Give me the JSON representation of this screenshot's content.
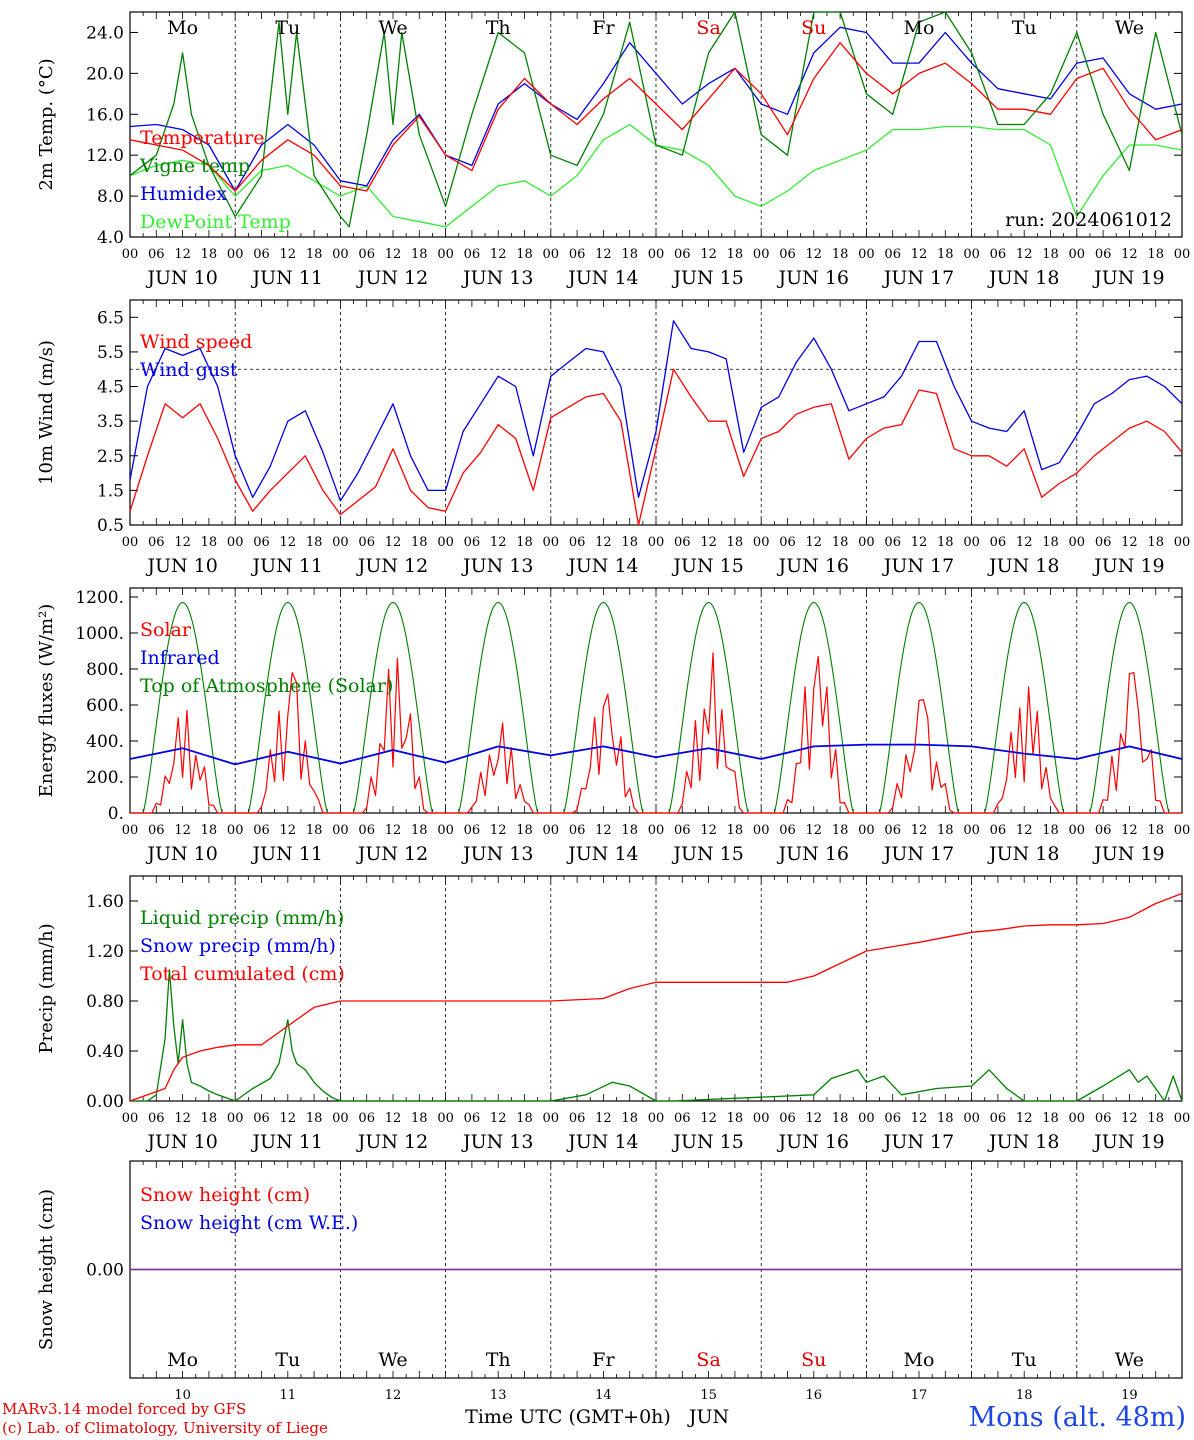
{
  "footer": {
    "credit_line1": "MARv3.14 model forced by GFS",
    "credit_line2": "(c) Lab. of Climatology, University of Liege",
    "station": "Mons (alt. 48m)"
  },
  "chart_data": [
    {
      "id": "temperature",
      "type": "line",
      "ylabel": "2m Temp. (°C)",
      "ylim": [
        4.0,
        26.0
      ],
      "yticks": [
        "4.0",
        "8.0",
        "12.0",
        "16.0",
        "20.0",
        "24.0"
      ],
      "x_unit": "hours since JUN 10 00 UTC",
      "annotation": "run: 2024061012",
      "days_top": [
        {
          "label": "Mo",
          "color": "#000000"
        },
        {
          "label": "Tu",
          "color": "#000000"
        },
        {
          "label": "We",
          "color": "#000000"
        },
        {
          "label": "Th",
          "color": "#000000"
        },
        {
          "label": "Fr",
          "color": "#000000"
        },
        {
          "label": "Sa",
          "color": "#e00000"
        },
        {
          "label": "Su",
          "color": "#e00000"
        },
        {
          "label": "Mo",
          "color": "#000000"
        },
        {
          "label": "Tu",
          "color": "#000000"
        },
        {
          "label": "We",
          "color": "#000000"
        }
      ],
      "series": [
        {
          "name": "Temperature",
          "color": "#ff0000",
          "x": [
            0,
            6,
            12,
            18,
            24,
            30,
            36,
            42,
            48,
            54,
            60,
            66,
            72,
            78,
            84,
            90,
            96,
            102,
            108,
            114,
            120,
            126,
            132,
            138,
            144,
            150,
            156,
            162,
            168,
            174,
            180,
            186,
            192,
            198,
            204,
            210,
            216,
            222,
            228,
            234,
            240
          ],
          "y": [
            13.5,
            13.0,
            12.5,
            11.0,
            8.5,
            11.5,
            13.5,
            12.0,
            9.0,
            8.5,
            13.0,
            15.8,
            12.0,
            10.5,
            16.5,
            19.5,
            17.0,
            15.0,
            17.5,
            19.5,
            17.0,
            14.5,
            17.5,
            20.5,
            18.0,
            14.0,
            19.5,
            23.0,
            20.0,
            18.0,
            20.0,
            21.0,
            19.0,
            16.5,
            16.5,
            16.0,
            19.5,
            20.5,
            16.5,
            13.5,
            14.5
          ]
        },
        {
          "name": "Vigne temp",
          "color": "#008000",
          "x": [
            0,
            6,
            10,
            12,
            14,
            18,
            24,
            30,
            34,
            36,
            38,
            42,
            48,
            50,
            54,
            58,
            60,
            62,
            66,
            72,
            78,
            84,
            90,
            96,
            102,
            108,
            114,
            120,
            126,
            132,
            138,
            144,
            150,
            156,
            162,
            168,
            174,
            180,
            186,
            192,
            198,
            204,
            210,
            216,
            222,
            228,
            234,
            240
          ],
          "y": [
            10.0,
            12.0,
            17.0,
            22.0,
            16.0,
            11.0,
            6.0,
            10.0,
            25.0,
            16.0,
            24.0,
            10.0,
            6.0,
            5.0,
            14.0,
            24.0,
            15.0,
            24.0,
            14.0,
            7.0,
            16.0,
            24.0,
            22.0,
            12.0,
            11.0,
            16.0,
            25.0,
            13.0,
            12.0,
            22.0,
            26.0,
            14.0,
            12.0,
            26.0,
            26.0,
            18.0,
            16.0,
            25.0,
            26.0,
            22.0,
            15.0,
            15.0,
            18.0,
            24.0,
            16.0,
            10.5,
            24.0,
            14.0
          ]
        },
        {
          "name": "Humidex",
          "color": "#0000e6",
          "x": [
            0,
            6,
            12,
            18,
            24,
            30,
            36,
            42,
            48,
            54,
            60,
            66,
            72,
            78,
            84,
            90,
            96,
            102,
            108,
            114,
            120,
            126,
            132,
            138,
            144,
            150,
            156,
            162,
            168,
            174,
            180,
            186,
            192,
            198,
            204,
            210,
            216,
            222,
            228,
            234,
            240
          ],
          "y": [
            14.8,
            15.0,
            14.5,
            13.0,
            8.5,
            13.0,
            15.0,
            13.0,
            9.5,
            9.0,
            13.5,
            16.0,
            12.0,
            11.0,
            17.0,
            19.0,
            17.0,
            15.5,
            19.0,
            23.0,
            20.0,
            17.0,
            19.0,
            20.5,
            17.0,
            16.0,
            22.0,
            24.5,
            24.0,
            21.0,
            21.0,
            24.0,
            21.0,
            18.5,
            18.0,
            17.5,
            21.0,
            21.5,
            18.0,
            16.5,
            17.0
          ]
        },
        {
          "name": "DewPoint Temp",
          "color": "#33ee33",
          "x": [
            0,
            6,
            12,
            18,
            24,
            30,
            36,
            42,
            48,
            54,
            60,
            66,
            72,
            78,
            84,
            90,
            96,
            102,
            108,
            114,
            120,
            126,
            132,
            138,
            144,
            150,
            156,
            162,
            168,
            174,
            180,
            186,
            192,
            198,
            204,
            210,
            216,
            222,
            228,
            234,
            240
          ],
          "y": [
            10.0,
            11.0,
            11.5,
            11.0,
            8.0,
            10.5,
            11.0,
            9.5,
            8.0,
            9.0,
            6.0,
            5.5,
            5.0,
            7.0,
            9.0,
            9.5,
            8.0,
            10.0,
            13.5,
            15.0,
            13.0,
            12.5,
            11.0,
            8.0,
            7.0,
            8.5,
            10.5,
            11.5,
            12.5,
            14.5,
            14.5,
            14.8,
            14.8,
            14.5,
            14.5,
            13.0,
            6.0,
            10.0,
            13.0,
            13.0,
            12.5
          ]
        }
      ]
    },
    {
      "id": "wind",
      "type": "line",
      "ylabel": "10m Wind (m/s)",
      "ylim": [
        0.5,
        7.0
      ],
      "yticks": [
        "0.5",
        "1.5",
        "2.5",
        "3.5",
        "4.5",
        "5.5",
        "6.5"
      ],
      "reference_line": 5.0,
      "series": [
        {
          "name": "Wind speed",
          "color": "#ff0000",
          "x": [
            0,
            4,
            8,
            12,
            16,
            20,
            24,
            28,
            32,
            36,
            40,
            44,
            48,
            52,
            56,
            60,
            64,
            68,
            72,
            76,
            80,
            84,
            88,
            92,
            96,
            100,
            104,
            108,
            112,
            116,
            120,
            124,
            128,
            132,
            136,
            140,
            144,
            148,
            152,
            156,
            160,
            164,
            168,
            172,
            176,
            180,
            184,
            188,
            192,
            196,
            200,
            204,
            208,
            212,
            216,
            220,
            224,
            228,
            232,
            236,
            240
          ],
          "y": [
            0.9,
            2.5,
            4.0,
            3.6,
            4.0,
            3.0,
            1.8,
            0.9,
            1.5,
            2.0,
            2.5,
            1.5,
            0.8,
            1.2,
            1.6,
            2.7,
            1.5,
            1.0,
            0.9,
            2.0,
            2.6,
            3.4,
            3.0,
            1.5,
            3.6,
            3.9,
            4.2,
            4.3,
            3.5,
            0.5,
            2.7,
            5.0,
            4.2,
            3.5,
            3.5,
            1.9,
            3.0,
            3.2,
            3.7,
            3.9,
            4.0,
            2.4,
            3.0,
            3.3,
            3.4,
            4.4,
            4.3,
            2.7,
            2.5,
            2.5,
            2.2,
            2.7,
            1.3,
            1.7,
            2.0,
            2.5,
            2.9,
            3.3,
            3.5,
            3.2,
            2.6
          ]
        },
        {
          "name": "Wind gust",
          "color": "#0000e6",
          "x": [
            0,
            4,
            8,
            12,
            16,
            20,
            24,
            28,
            32,
            36,
            40,
            44,
            48,
            52,
            56,
            60,
            64,
            68,
            72,
            76,
            80,
            84,
            88,
            92,
            96,
            100,
            104,
            108,
            112,
            116,
            120,
            124,
            128,
            132,
            136,
            140,
            144,
            148,
            152,
            156,
            160,
            164,
            168,
            172,
            176,
            180,
            184,
            188,
            192,
            196,
            200,
            204,
            208,
            212,
            216,
            220,
            224,
            228,
            232,
            236,
            240
          ],
          "y": [
            1.8,
            4.5,
            5.6,
            5.4,
            5.6,
            4.5,
            2.5,
            1.3,
            2.2,
            3.5,
            3.8,
            2.6,
            1.2,
            2.0,
            3.0,
            4.0,
            2.5,
            1.5,
            1.5,
            3.2,
            4.0,
            4.8,
            4.5,
            2.5,
            4.8,
            5.2,
            5.6,
            5.5,
            4.5,
            1.3,
            3.2,
            6.4,
            5.6,
            5.5,
            5.3,
            2.6,
            3.9,
            4.2,
            5.2,
            5.9,
            5.0,
            3.8,
            4.0,
            4.2,
            4.8,
            5.8,
            5.8,
            4.5,
            3.5,
            3.3,
            3.2,
            3.8,
            2.1,
            2.3,
            3.1,
            4.0,
            4.3,
            4.7,
            4.8,
            4.5,
            4.0
          ]
        }
      ]
    },
    {
      "id": "energy",
      "type": "line",
      "ylabel": "Energy fluxes (W/m²)",
      "ylim": [
        0,
        1250
      ],
      "yticks": [
        "0.",
        "200.",
        "400.",
        "600.",
        "800.",
        "1000.",
        "1200."
      ],
      "daily_solar_peaks": [
        570,
        780,
        860,
        500,
        660,
        890,
        870,
        630,
        700,
        780
      ],
      "toa_peak": 1170,
      "series": [
        {
          "name": "Solar",
          "color": "#ff0000"
        },
        {
          "name": "Infrared",
          "color": "#0000e6",
          "x": [
            0,
            12,
            24,
            36,
            48,
            60,
            72,
            84,
            96,
            108,
            120,
            132,
            144,
            156,
            168,
            180,
            192,
            204,
            216,
            228,
            240
          ],
          "y": [
            300,
            360,
            270,
            340,
            275,
            350,
            280,
            370,
            320,
            370,
            310,
            360,
            300,
            370,
            380,
            380,
            370,
            330,
            300,
            370,
            300
          ]
        },
        {
          "name": "Top of Atmosphere (Solar)",
          "color": "#008000"
        }
      ]
    },
    {
      "id": "precip",
      "type": "line",
      "ylabel": "Precip (mm/h)",
      "ylim": [
        0,
        1.8
      ],
      "yticks": [
        "0.00",
        "0.40",
        "0.80",
        "1.20",
        "1.60"
      ],
      "series": [
        {
          "name": "Liquid precip (mm/h)",
          "color": "#008000",
          "x": [
            0,
            4,
            6,
            8,
            9,
            10,
            11,
            12,
            13,
            14,
            16,
            18,
            20,
            24,
            28,
            32,
            34,
            36,
            37,
            38,
            40,
            42,
            44,
            46,
            48,
            60,
            96,
            104,
            110,
            114,
            120,
            124,
            156,
            160,
            166,
            168,
            172,
            176,
            184,
            192,
            196,
            200,
            204,
            216,
            222,
            228,
            230,
            232,
            236,
            238,
            240
          ],
          "y": [
            0,
            0,
            0.05,
            0.5,
            1.05,
            0.6,
            0.3,
            0.65,
            0.3,
            0.15,
            0.12,
            0.08,
            0.05,
            0,
            0.1,
            0.18,
            0.3,
            0.65,
            0.4,
            0.3,
            0.25,
            0.15,
            0.08,
            0.03,
            0,
            0,
            0,
            0.05,
            0.15,
            0.12,
            0,
            0,
            0.05,
            0.18,
            0.25,
            0.15,
            0.2,
            0.05,
            0.1,
            0.12,
            0.25,
            0.1,
            0,
            0,
            0.12,
            0.25,
            0.15,
            0.2,
            0,
            0.2,
            0
          ]
        },
        {
          "name": "Snow precip (mm/h)",
          "color": "#0000e6"
        },
        {
          "name": "Total cumulated (cm)",
          "color": "#ff0000",
          "x": [
            0,
            8,
            10,
            12,
            16,
            20,
            24,
            30,
            36,
            42,
            48,
            60,
            72,
            96,
            108,
            114,
            120,
            132,
            144,
            150,
            156,
            162,
            168,
            180,
            192,
            198,
            204,
            210,
            216,
            222,
            228,
            234,
            240
          ],
          "y": [
            0,
            0.1,
            0.25,
            0.35,
            0.4,
            0.43,
            0.45,
            0.45,
            0.6,
            0.75,
            0.8,
            0.8,
            0.8,
            0.8,
            0.82,
            0.9,
            0.95,
            0.95,
            0.95,
            0.95,
            1.0,
            1.1,
            1.2,
            1.27,
            1.35,
            1.37,
            1.4,
            1.41,
            1.41,
            1.42,
            1.47,
            1.58,
            1.66
          ]
        }
      ]
    },
    {
      "id": "snow",
      "type": "line",
      "ylabel": "Snow height (cm)",
      "ylim": [
        -1,
        1
      ],
      "yticks": [
        "0.00"
      ],
      "xlabel": "Time UTC (GMT+0h)",
      "month_label": "JUN",
      "day_numbers": [
        "10",
        "11",
        "12",
        "13",
        "14",
        "15",
        "16",
        "17",
        "18",
        "19"
      ],
      "series": [
        {
          "name": "Snow height (cm)",
          "color": "#ff0000",
          "x": [
            0,
            240
          ],
          "y": [
            0,
            0
          ]
        },
        {
          "name": "Snow height (cm W.E.)",
          "color": "#0000e6",
          "x": [
            0,
            240
          ],
          "y": [
            0,
            0
          ]
        }
      ]
    }
  ],
  "axis": {
    "hour_labels": [
      "00",
      "06",
      "12",
      "18"
    ],
    "date_labels": [
      "JUN 10",
      "JUN 11",
      "JUN 12",
      "JUN 13",
      "JUN 14",
      "JUN 15",
      "JUN 16",
      "JUN 17",
      "JUN 18",
      "JUN 19"
    ]
  }
}
